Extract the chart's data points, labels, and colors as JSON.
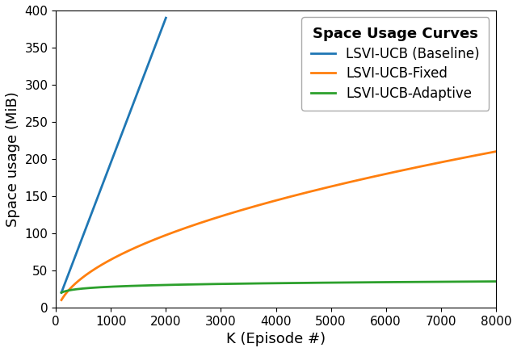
{
  "title": "Space Usage Curves",
  "xlabel": "K (Episode #)",
  "ylabel": "Space usage (MiB)",
  "xlim": [
    0,
    8000
  ],
  "ylim": [
    0,
    400
  ],
  "yticks": [
    0,
    50,
    100,
    150,
    200,
    250,
    300,
    350,
    400
  ],
  "xticks": [
    0,
    1000,
    2000,
    3000,
    4000,
    5000,
    6000,
    7000,
    8000
  ],
  "legend_title": "Space Usage Curves",
  "series": [
    {
      "label": "LSVI-UCB (Baseline)",
      "color": "#1f77b4",
      "type": "linear",
      "x_start": 100,
      "x_end": 2000,
      "y_start": 20,
      "y_end": 390
    },
    {
      "label": "LSVI-UCB-Fixed",
      "color": "#ff7f0e",
      "type": "sqrt",
      "x_start": 100,
      "x_end": 8000,
      "y_at_100": 10,
      "y_at_8000": 210
    },
    {
      "label": "LSVI-UCB-Adaptive",
      "color": "#2ca02c",
      "type": "log",
      "x_start": 100,
      "x_end": 8000,
      "y_at_100": 20,
      "y_at_8000": 35
    }
  ],
  "figsize": [
    6.4,
    4.36
  ],
  "dpi": 100,
  "legend_fontsize": 12,
  "legend_title_fontsize": 13,
  "axis_label_fontsize": 13,
  "tick_fontsize": 11,
  "linewidth": 2.0
}
